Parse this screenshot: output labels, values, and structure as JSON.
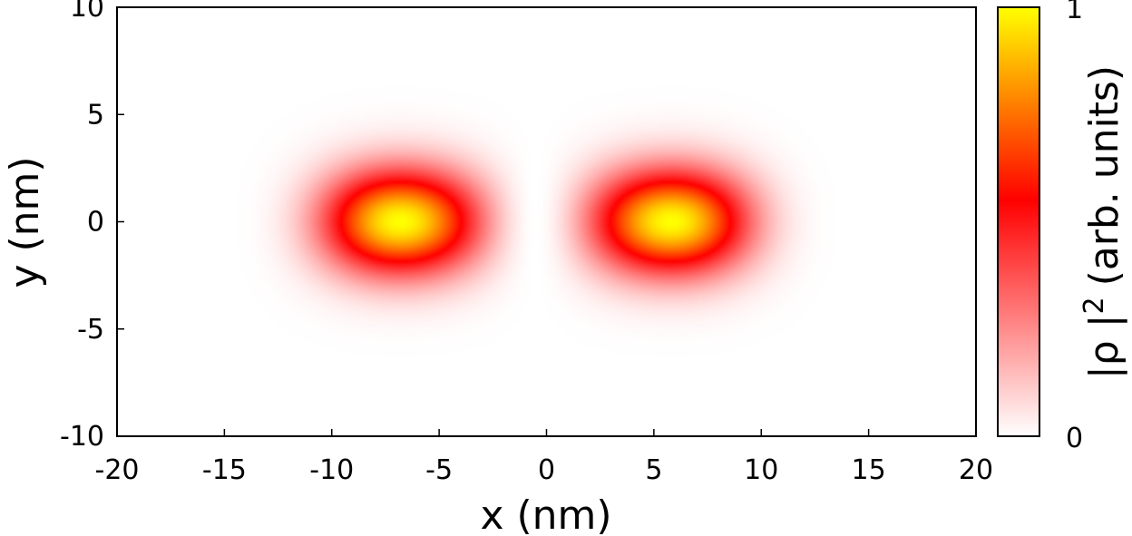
{
  "chart_data": {
    "type": "heatmap",
    "title": "",
    "xlabel": "x (nm)",
    "ylabel": "y (nm)",
    "xlim": [
      -20,
      20
    ],
    "ylim": [
      -10,
      10
    ],
    "x_ticks": [
      "-20",
      "-15",
      "-10",
      "-5",
      "0",
      "5",
      "10",
      "15",
      "20"
    ],
    "y_ticks": [
      "-10",
      "-5",
      "0",
      "5",
      "10"
    ],
    "colorbar": {
      "label_main": "|ρ |",
      "label_exponent": "2",
      "label_units": "(arb. units)",
      "min": "0",
      "max": "1",
      "colors": [
        "#ffffff",
        "#ff0000",
        "#ffff00"
      ]
    },
    "density_peaks": [
      {
        "x": -8,
        "y": 0,
        "value": 1
      },
      {
        "x": 7,
        "y": 0,
        "value": 1
      }
    ],
    "density_node": {
      "x": -0.5,
      "y": 0,
      "value": 0
    }
  }
}
